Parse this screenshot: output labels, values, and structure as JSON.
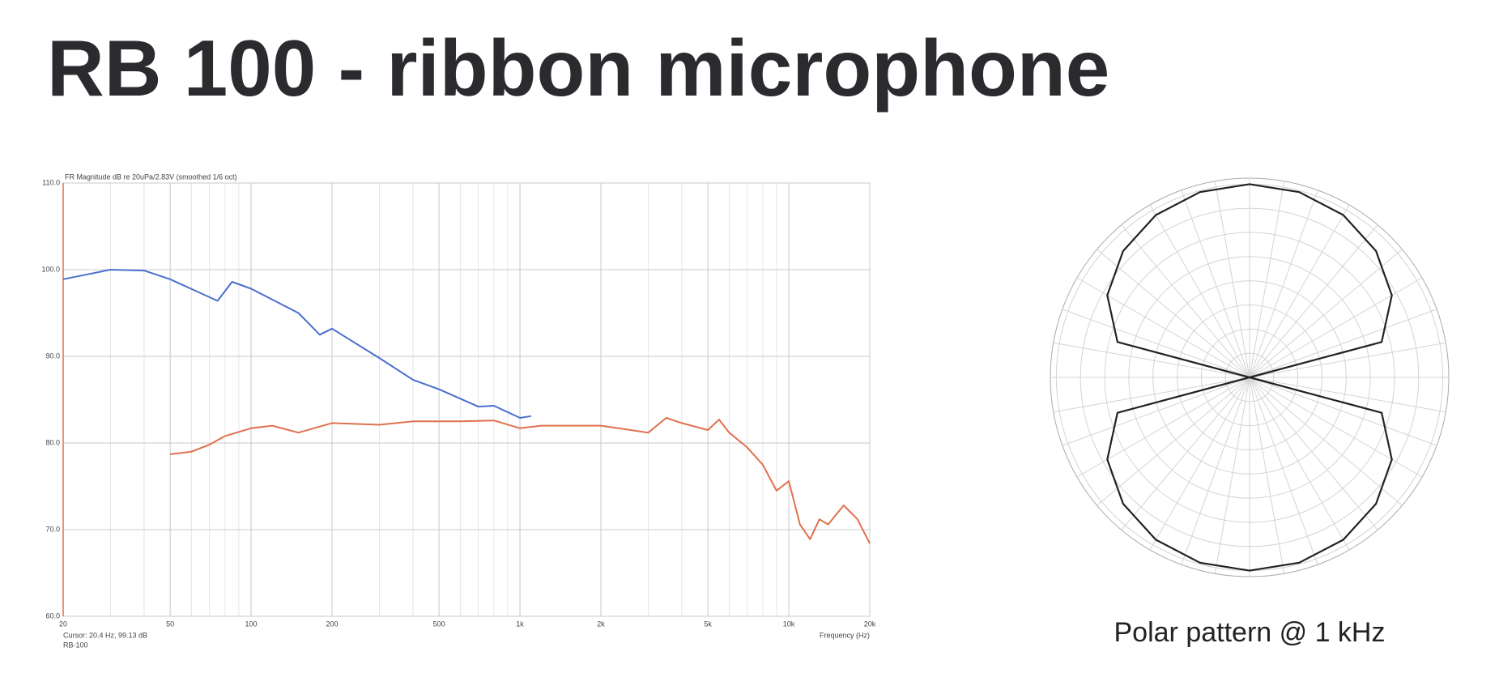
{
  "title": "RB 100 - ribbon microphone",
  "chart_data": [
    {
      "type": "line",
      "title": "FR Magnitude dB re 20uPa/2.83V (smoothed 1/6 oct)",
      "xlabel": "Frequency (Hz)",
      "annotations": [
        "Cursor: 20.4 Hz, 99.13 dB",
        "RB-100"
      ],
      "xscale": "log",
      "xlim": [
        20,
        20000
      ],
      "xticks": [
        20,
        50,
        100,
        200,
        500,
        {
          "value": 1000,
          "label": "1k"
        },
        {
          "value": 2000,
          "label": "2k"
        },
        {
          "value": 5000,
          "label": "5k"
        },
        {
          "value": 10000,
          "label": "10k"
        },
        {
          "value": 20000,
          "label": "20k"
        }
      ],
      "xminor": [
        30,
        40,
        60,
        70,
        80,
        90,
        300,
        400,
        600,
        700,
        800,
        900,
        3000,
        4000,
        6000,
        7000,
        8000,
        9000
      ],
      "ylim": [
        60,
        110
      ],
      "yticks": [
        {
          "value": 60,
          "label": "60.0"
        },
        {
          "value": 70,
          "label": "70.0"
        },
        {
          "value": 80,
          "label": "80.0"
        },
        {
          "value": 90,
          "label": "90.0"
        },
        {
          "value": 100,
          "label": "100.0"
        },
        {
          "value": 110,
          "label": "110.0"
        }
      ],
      "grid": true,
      "series": [
        {
          "color": "#4a6fd0",
          "x": [
            20,
            30,
            40,
            50,
            75,
            85,
            100,
            150,
            180,
            200,
            300,
            400,
            500,
            700,
            800,
            1000,
            1100
          ],
          "values": [
            98.9,
            100,
            99.9,
            98.9,
            96.4,
            98.6,
            97.8,
            95.0,
            92.5,
            93.2,
            89.8,
            87.3,
            86.2,
            84.2,
            84.3,
            82.9,
            83.1
          ]
        },
        {
          "color": "#e0714f",
          "x": [
            50,
            60,
            70,
            80,
            100,
            120,
            150,
            200,
            300,
            400,
            600,
            800,
            1000,
            1200,
            2000,
            3000,
            3500,
            4000,
            5000,
            5500,
            6000,
            7000,
            8000,
            9000,
            10000,
            11000,
            12000,
            13000,
            14000,
            16000,
            18000,
            20000
          ],
          "values": [
            78.7,
            79.0,
            79.8,
            80.8,
            81.7,
            82.0,
            81.2,
            82.3,
            82.1,
            82.5,
            82.5,
            82.6,
            81.7,
            82.0,
            82.0,
            81.2,
            82.9,
            82.3,
            81.5,
            82.7,
            81.2,
            79.5,
            77.5,
            74.5,
            75.6,
            70.6,
            68.9,
            71.2,
            70.6,
            72.8,
            71.2,
            68.4
          ]
        }
      ]
    },
    {
      "type": "polar",
      "title": "Polar pattern @ 1 kHz",
      "rlim": [
        -40,
        0
      ],
      "rticks": [
        -35,
        -30,
        -25,
        -20,
        -15,
        -10,
        -5,
        0
      ],
      "theta": [
        0,
        15,
        30,
        45,
        60,
        75,
        90,
        105,
        120,
        135,
        150,
        165,
        180,
        195,
        210,
        225,
        240,
        255,
        270,
        285,
        300,
        315,
        330,
        345
      ],
      "series": [
        {
          "color": "#222222",
          "values": [
            0,
            -0.3,
            -1.2,
            -3,
            -6,
            -11.7,
            -40,
            -11.7,
            -6,
            -3,
            -1.2,
            -0.3,
            0,
            -0.3,
            -1.2,
            -3,
            -6,
            -11.7,
            -40,
            -11.7,
            -6,
            -3,
            -1.2,
            -0.3
          ]
        }
      ]
    }
  ]
}
